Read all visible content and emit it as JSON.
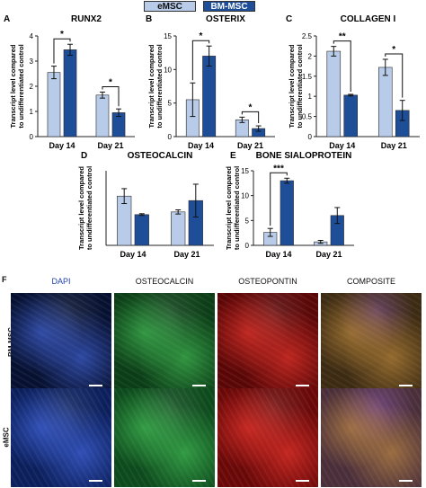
{
  "legend": [
    {
      "name": "eMSC",
      "color": "#b8cbe8"
    },
    {
      "name": "BM-MSC",
      "color": "#1f4e99"
    }
  ],
  "ylabel": "Transcript level compared to undifferentiated control",
  "chart_data": [
    {
      "panel": "A",
      "type": "bar",
      "title": "RUNX2",
      "categories": [
        "Day 14",
        "Day 21"
      ],
      "ylim": [
        0,
        4
      ],
      "yticks": [
        0,
        1,
        2,
        3,
        4
      ],
      "series": [
        {
          "name": "eMSC",
          "values": [
            2.55,
            1.65
          ],
          "errors": [
            0.25,
            0.12
          ]
        },
        {
          "name": "BM-MSC",
          "values": [
            3.45,
            0.95
          ],
          "errors": [
            0.22,
            0.15
          ]
        }
      ],
      "significance": [
        {
          "group": 0,
          "label": "*"
        },
        {
          "group": 1,
          "label": "*"
        }
      ]
    },
    {
      "panel": "B",
      "type": "bar",
      "title": "OSTERIX",
      "categories": [
        "Day 14",
        "Day 21"
      ],
      "ylim": [
        0,
        15
      ],
      "yticks": [
        0,
        5,
        10,
        15
      ],
      "series": [
        {
          "name": "eMSC",
          "values": [
            5.5,
            2.5
          ],
          "errors": [
            2.5,
            0.4
          ]
        },
        {
          "name": "BM-MSC",
          "values": [
            12.0,
            1.2
          ],
          "errors": [
            1.5,
            0.4
          ]
        }
      ],
      "significance": [
        {
          "group": 0,
          "label": "*"
        },
        {
          "group": 1,
          "label": "*"
        }
      ]
    },
    {
      "panel": "C",
      "type": "bar",
      "title": "COLLAGEN I",
      "categories": [
        "Day 14",
        "Day 21"
      ],
      "ylim": [
        0,
        2.5
      ],
      "yticks": [
        0,
        0.5,
        1.0,
        1.5,
        2.0,
        2.5
      ],
      "series": [
        {
          "name": "eMSC",
          "values": [
            2.12,
            1.72
          ],
          "errors": [
            0.12,
            0.2
          ]
        },
        {
          "name": "BM-MSC",
          "values": [
            1.03,
            0.65
          ],
          "errors": [
            0.02,
            0.25
          ]
        }
      ],
      "significance": [
        {
          "group": 0,
          "label": "**"
        },
        {
          "group": 1,
          "label": "*"
        }
      ]
    },
    {
      "panel": "D",
      "type": "bar",
      "title": "OSTEOCALCIN",
      "categories": [
        "Day 14",
        "Day 21"
      ],
      "ylim": [
        0,
        2.5
      ],
      "yticks": [],
      "series": [
        {
          "name": "eMSC",
          "values": [
            1.65,
            1.12
          ],
          "errors": [
            0.25,
            0.07
          ]
        },
        {
          "name": "BM-MSC",
          "values": [
            1.03,
            1.5
          ],
          "errors": [
            0.03,
            0.55
          ]
        }
      ],
      "significance": []
    },
    {
      "panel": "E",
      "type": "bar",
      "title": "BONE SIALOPROTEIN",
      "categories": [
        "Day 14",
        "Day 21"
      ],
      "ylim": [
        0,
        15
      ],
      "yticks": [
        0,
        5,
        10,
        15
      ],
      "series": [
        {
          "name": "eMSC",
          "values": [
            2.6,
            0.7
          ],
          "errors": [
            0.8,
            0.3
          ]
        },
        {
          "name": "BM-MSC",
          "values": [
            13.0,
            6.0
          ],
          "errors": [
            0.5,
            1.6
          ]
        }
      ],
      "significance": [
        {
          "group": 0,
          "label": "***"
        }
      ]
    }
  ],
  "micrographs": {
    "panel": "F",
    "columns": [
      {
        "label": "DAPI",
        "color": "#1f3fa8"
      },
      {
        "label": "OSTEOCALCIN",
        "color": "#111111"
      },
      {
        "label": "OSTEOPONTIN",
        "color": "#111111"
      },
      {
        "label": "COMPOSITE",
        "color": "#111111"
      }
    ],
    "rows": [
      {
        "label": "BM-MSC",
        "tints": [
          "#061030",
          "#0b3d16",
          "#5a0606",
          "#3c2a12"
        ]
      },
      {
        "label": "eMSC",
        "tints": [
          "#0b1f5c",
          "#0d4a1c",
          "#6a0808",
          "#4a2e3a"
        ]
      }
    ]
  }
}
